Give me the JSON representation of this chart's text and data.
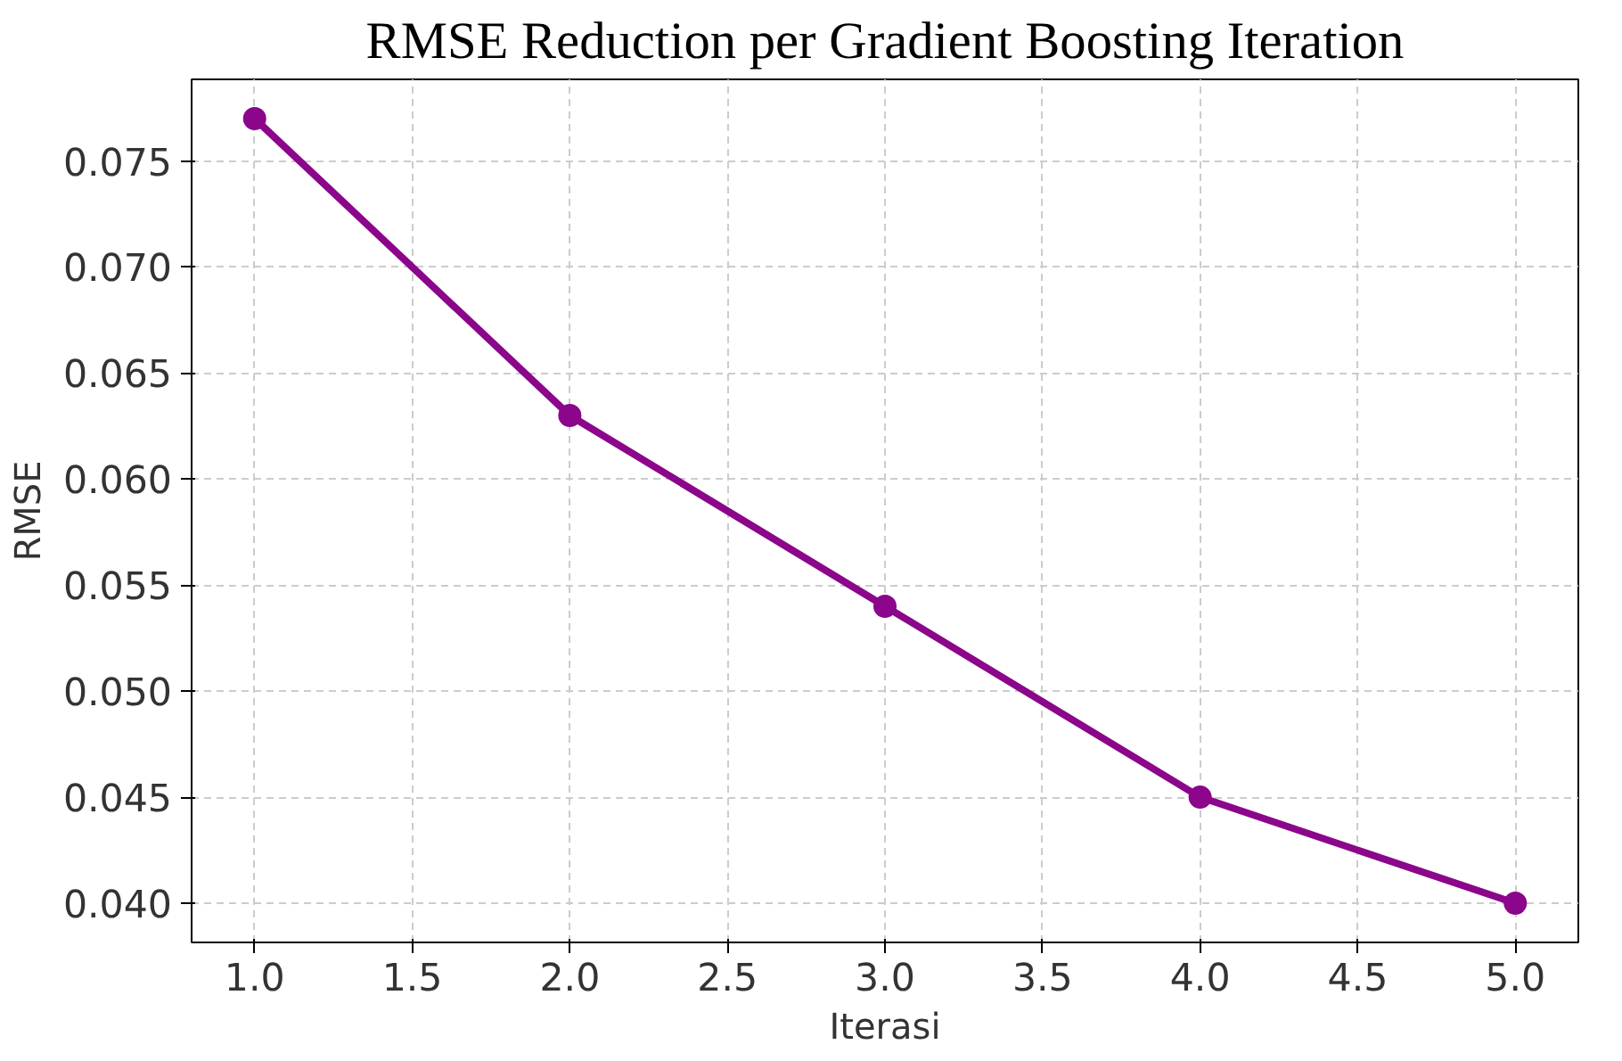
{
  "chart_data": {
    "type": "line",
    "title": "RMSE Reduction per Gradient Boosting Iteration",
    "xlabel": "Iterasi",
    "ylabel": "RMSE",
    "x": [
      1,
      2,
      3,
      4,
      5
    ],
    "series": [
      {
        "color": "#8b068b",
        "values": [
          0.077,
          0.063,
          0.054,
          0.045,
          0.04
        ]
      }
    ],
    "xlim": [
      0.8,
      5.2
    ],
    "ylim": [
      0.03815,
      0.07885
    ],
    "xticks": [
      {
        "value": 1,
        "label": "1.0"
      },
      {
        "value": 1.5,
        "label": "1.5"
      },
      {
        "value": 2,
        "label": "2.0"
      },
      {
        "value": 2.5,
        "label": "2.5"
      },
      {
        "value": 3,
        "label": "3.0"
      },
      {
        "value": 3.5,
        "label": "3.5"
      },
      {
        "value": 4,
        "label": "4.0"
      },
      {
        "value": 4.5,
        "label": "4.5"
      },
      {
        "value": 5,
        "label": "5.0"
      }
    ],
    "yticks": [
      {
        "value": 0.04,
        "label": "0.040"
      },
      {
        "value": 0.045,
        "label": "0.045"
      },
      {
        "value": 0.05,
        "label": "0.050"
      },
      {
        "value": 0.055,
        "label": "0.055"
      },
      {
        "value": 0.06,
        "label": "0.060"
      },
      {
        "value": 0.065,
        "label": "0.065"
      },
      {
        "value": 0.07,
        "label": "0.070"
      },
      {
        "value": 0.075,
        "label": "0.075"
      }
    ],
    "grid": true,
    "marker": "circle",
    "line_style": "solid"
  }
}
